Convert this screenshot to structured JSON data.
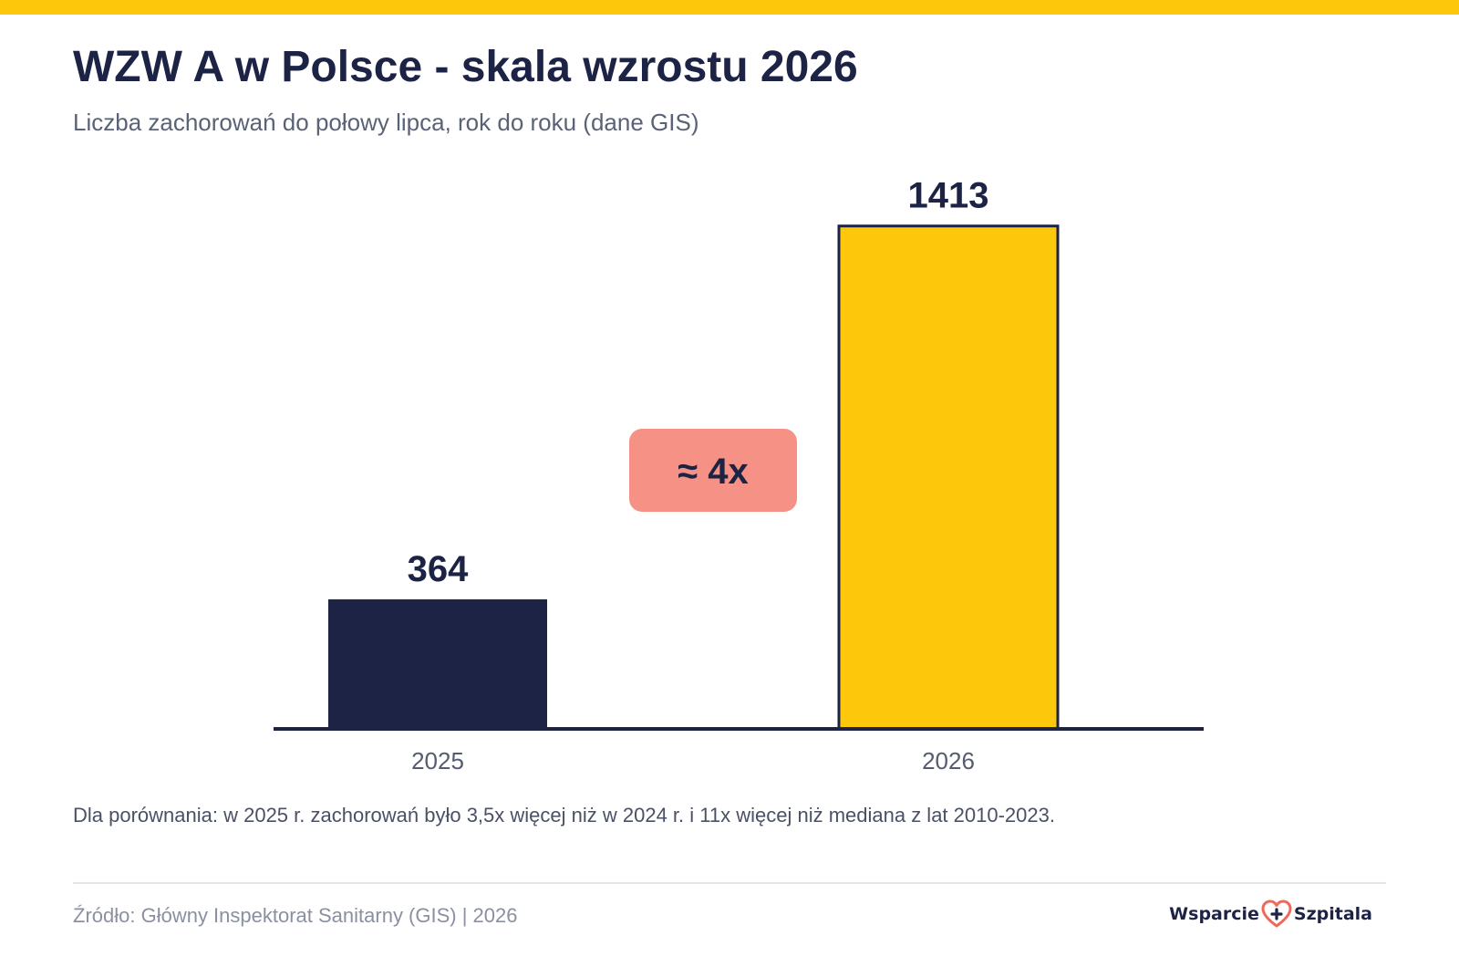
{
  "header": {
    "title": "WZW A w Polsce - skala wzrostu 2026",
    "subtitle": "Liczba zachorowań do połowy lipca, rok do roku (dane GIS)"
  },
  "chart_data": {
    "type": "bar",
    "categories": [
      "2025",
      "2026"
    ],
    "values": [
      364,
      1413
    ],
    "data_labels": [
      "364",
      "1413"
    ],
    "bar_colors": [
      "#1c2345",
      "#fdc70c"
    ],
    "ylim": [
      0,
      1520
    ],
    "grid": false,
    "legend": "none",
    "annotation": "≈ 4x"
  },
  "note": "Dla porównania: w 2025 r. zachorowań było 3,5x więcej niż w 2024 r. i 11x więcej niż mediana z lat 2010-2023.",
  "footer": {
    "source": "Źródło: Główny Inspektorat Sanitarny (GIS) | 2026",
    "brand_left": "Wsparcie",
    "brand_right": "Szpitala",
    "brand_icon": "heart-plus-icon"
  },
  "colors": {
    "accent": "#fdc70c",
    "navy": "#1c2345",
    "annotation_bg": "#f59285",
    "subtitle_text": "#5a6275",
    "tick_text": "#555c6e",
    "note_text": "#4a5165",
    "source_text": "#8a90a0",
    "heart": "#f0685a"
  }
}
